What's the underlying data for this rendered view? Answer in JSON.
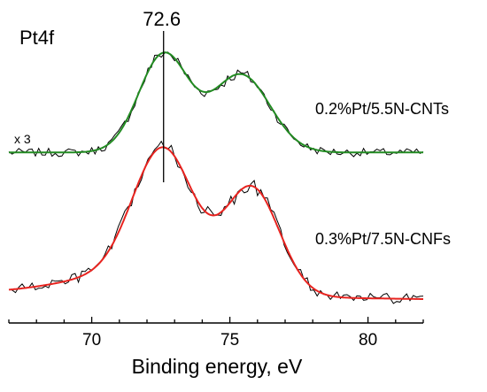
{
  "chart_data": {
    "type": "line",
    "title": "Pt4f",
    "xlabel": "Binding energy, eV",
    "ylabel": "",
    "xlim": [
      67,
      82
    ],
    "x_ticks": [
      70,
      75,
      80
    ],
    "grid": false,
    "legend": "none",
    "annotations": {
      "peak_label": "72.6",
      "peak_x": 72.6,
      "scale_note": "x 3"
    },
    "series": [
      {
        "name": "0.2%Pt/5.5N-CNTs",
        "fit_color": "#228b22",
        "raw_color": "#000000",
        "baseline": 0.02,
        "components": [
          {
            "center": 72.6,
            "height": 0.83,
            "width": 0.9
          },
          {
            "center": 75.4,
            "height": 0.66,
            "width": 1.05
          }
        ],
        "noise": 0.035,
        "raw_step": 0.12
      },
      {
        "name": "0.3%Pt/7.5N-CNFs",
        "fit_color": "#e8231f",
        "raw_color": "#000000",
        "baseline_start": 0.04,
        "baseline_end": 0.0,
        "components": [
          {
            "center": 72.6,
            "height": 0.9,
            "width": 1.1
          },
          {
            "center": 75.8,
            "height": 0.72,
            "width": 1.0
          },
          {
            "center": 71.0,
            "height": 0.12,
            "width": 2.2
          }
        ],
        "noise": 0.035,
        "raw_step": 0.12
      }
    ]
  }
}
